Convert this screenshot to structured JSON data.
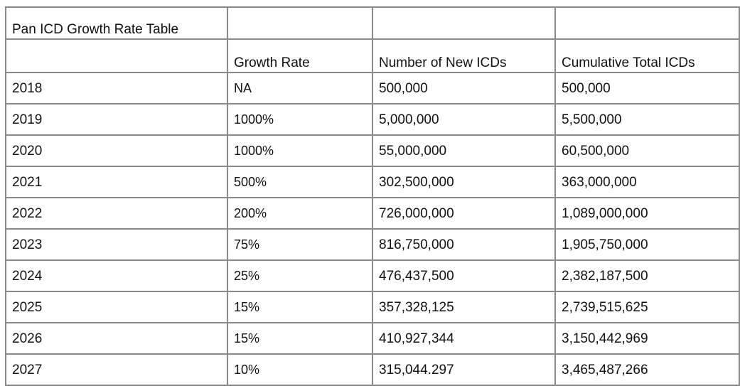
{
  "table": {
    "title": "Pan ICD Growth Rate Table",
    "headers": {
      "year": "",
      "growth_rate": "Growth Rate",
      "new_icds": "Number of New ICDs",
      "cumulative_icds": "Cumulative Total ICDs"
    },
    "rows": [
      {
        "year": "2018",
        "growth_rate": "NA",
        "new_icds": "500,000",
        "cumulative_icds": "500,000"
      },
      {
        "year": "2019",
        "growth_rate": "1000%",
        "new_icds": "5,000,000",
        "cumulative_icds": "5,500,000"
      },
      {
        "year": "2020",
        "growth_rate": "1000%",
        "new_icds": "55,000,000",
        "cumulative_icds": "60,500,000"
      },
      {
        "year": "2021",
        "growth_rate": "500%",
        "new_icds": "302,500,000",
        "cumulative_icds": "363,000,000"
      },
      {
        "year": "2022",
        "growth_rate": "200%",
        "new_icds": "726,000,000",
        "cumulative_icds": "1,089,000,000"
      },
      {
        "year": "2023",
        "growth_rate": "75%",
        "new_icds": "816,750,000",
        "cumulative_icds": "1,905,750,000"
      },
      {
        "year": "2024",
        "growth_rate": "25%",
        "new_icds": "476,437,500",
        "cumulative_icds": "2,382,187,500"
      },
      {
        "year": "2025",
        "growth_rate": "15%",
        "new_icds": "357,328,125",
        "cumulative_icds": "2,739,515,625"
      },
      {
        "year": "2026",
        "growth_rate": "15%",
        "new_icds": "410,927,344",
        "cumulative_icds": "3,150,442,969"
      },
      {
        "year": "2027",
        "growth_rate": "10%",
        "new_icds": "315,044.297",
        "cumulative_icds": "3,465,487,266"
      }
    ]
  }
}
